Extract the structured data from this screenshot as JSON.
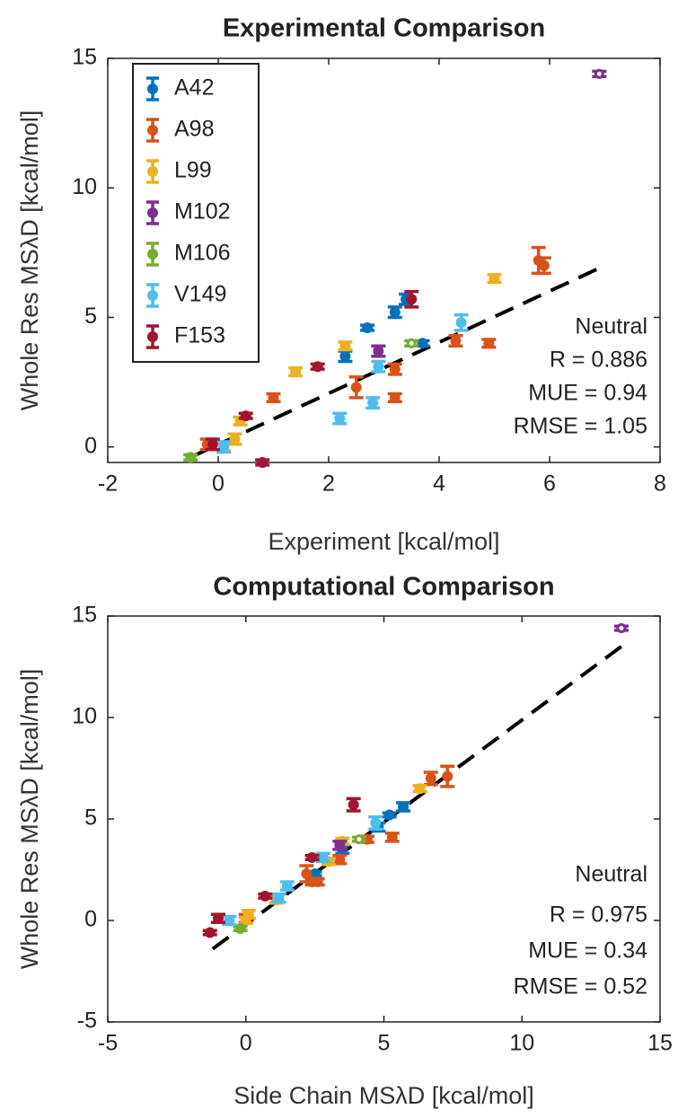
{
  "chart_data": [
    {
      "type": "scatter",
      "title": "Experimental Comparison",
      "x_label": "Experiment [kcal/mol]",
      "y_label": "Whole Res MSλD [kcal/mol]",
      "xlim": [
        -2,
        8
      ],
      "xticks": [
        -2,
        0,
        2,
        4,
        6,
        8
      ],
      "ylim": [
        -0.6,
        15
      ],
      "yticks": [
        0,
        5,
        10,
        15
      ],
      "legend": "upper left",
      "annotations": [
        "Neutral",
        "R = 0.886",
        "MUE = 0.94",
        "RMSE = 1.05"
      ],
      "fit_line": {
        "x": [
          -0.5,
          6.9
        ],
        "y": [
          -0.4,
          6.9
        ]
      },
      "series": [
        {
          "name": "A42",
          "color": "#0072BD",
          "x": [
            2.3,
            2.7,
            3.2,
            3.4,
            3.7
          ],
          "y": [
            3.5,
            4.6,
            5.2,
            5.7,
            4.0
          ],
          "errors": [
            0.2,
            0.1,
            0.2,
            0.2,
            0.1
          ]
        },
        {
          "name": "A98",
          "color": "#D95319",
          "x": [
            5.8,
            5.9,
            4.3,
            4.9,
            3.2,
            3.2,
            2.5,
            1.0,
            -0.2
          ],
          "y": [
            7.2,
            7.0,
            4.1,
            4.0,
            3.0,
            1.9,
            2.3,
            1.9,
            0.1
          ],
          "errors": [
            0.5,
            0.3,
            0.2,
            0.15,
            0.2,
            0.15,
            0.4,
            0.15,
            0.2
          ]
        },
        {
          "name": "L99",
          "color": "#EDB120",
          "x": [
            5.0,
            2.3,
            1.4,
            0.4,
            0.3,
            0.1
          ],
          "y": [
            6.5,
            3.9,
            2.9,
            1.0,
            0.3,
            0.0
          ],
          "errors": [
            0.15,
            0.15,
            0.15,
            0.15,
            0.2,
            0.15
          ]
        },
        {
          "name": "M102",
          "color": "#7E2F8E",
          "x": [
            6.9,
            2.9
          ],
          "y": [
            14.4,
            3.7
          ],
          "errors": [
            0.1,
            0.2
          ],
          "open_points": [
            0
          ]
        },
        {
          "name": "M106",
          "color": "#77AC30",
          "x": [
            3.5,
            -0.5
          ],
          "y": [
            4.0,
            -0.4
          ],
          "errors": [
            0.1,
            0.1
          ],
          "open_points": [
            0
          ]
        },
        {
          "name": "V149",
          "color": "#4DBEEE",
          "x": [
            4.4,
            2.2,
            2.8,
            2.9,
            0.1
          ],
          "y": [
            4.8,
            1.1,
            1.7,
            3.1,
            0.0
          ],
          "errors": [
            0.3,
            0.2,
            0.2,
            0.2,
            0.2
          ]
        },
        {
          "name": "F153",
          "color": "#A2142F",
          "x": [
            3.5,
            1.8,
            0.5,
            0.8,
            -0.1
          ],
          "y": [
            5.7,
            3.1,
            1.2,
            -0.6,
            0.1
          ],
          "errors": [
            0.3,
            0.1,
            0.1,
            0.1,
            0.2
          ]
        }
      ]
    },
    {
      "type": "scatter",
      "title": "Computational Comparison",
      "x_label": "Side Chain MSλD [kcal/mol]",
      "y_label": "Whole Res MSλD [kcal/mol]",
      "xlim": [
        -5,
        15
      ],
      "xticks": [
        -5,
        0,
        5,
        10,
        15
      ],
      "ylim": [
        -5,
        15
      ],
      "yticks": [
        -5,
        0,
        5,
        10,
        15
      ],
      "annotations": [
        "Neutral",
        "R = 0.975",
        "MUE = 0.34",
        "RMSE = 0.52"
      ],
      "fit_line": {
        "x": [
          -1.2,
          13.6
        ],
        "y": [
          -1.4,
          13.5
        ]
      },
      "series": [
        {
          "color": "#0072BD",
          "x": [
            5.7,
            5.2,
            4.8,
            3.5,
            2.5
          ],
          "y": [
            5.6,
            5.2,
            4.6,
            3.5,
            2.3
          ],
          "errors": [
            0.2,
            0.1,
            0.2,
            0.2,
            0.1
          ]
        },
        {
          "color": "#D95319",
          "x": [
            7.3,
            6.7,
            5.3,
            4.4,
            3.4,
            2.4,
            2.2,
            2.6,
            0.0
          ],
          "y": [
            7.1,
            7.0,
            4.1,
            4.0,
            3.0,
            1.9,
            2.3,
            1.9,
            0.1
          ],
          "errors": [
            0.5,
            0.3,
            0.2,
            0.15,
            0.2,
            0.15,
            0.4,
            0.15,
            0.2
          ]
        },
        {
          "color": "#EDB120",
          "x": [
            6.3,
            3.5,
            3.0,
            1.1,
            0.1,
            0.0
          ],
          "y": [
            6.5,
            3.9,
            2.9,
            1.0,
            0.3,
            0.0
          ],
          "errors": [
            0.15,
            0.15,
            0.15,
            0.15,
            0.2,
            0.15
          ]
        },
        {
          "color": "#7E2F8E",
          "x": [
            13.6,
            3.4
          ],
          "y": [
            14.4,
            3.7
          ],
          "errors": [
            0.1,
            0.2
          ],
          "open_points": [
            0
          ]
        },
        {
          "color": "#77AC30",
          "x": [
            4.1,
            -0.2
          ],
          "y": [
            4.0,
            -0.4
          ],
          "errors": [
            0.1,
            0.1
          ],
          "open_points": [
            0
          ]
        },
        {
          "color": "#4DBEEE",
          "x": [
            4.7,
            1.2,
            1.5,
            2.8,
            -0.6
          ],
          "y": [
            4.8,
            1.1,
            1.7,
            3.1,
            0.0
          ],
          "errors": [
            0.3,
            0.2,
            0.2,
            0.2,
            0.2
          ]
        },
        {
          "color": "#A2142F",
          "x": [
            3.9,
            2.4,
            0.7,
            -1.3,
            -1.0
          ],
          "y": [
            5.7,
            3.1,
            1.2,
            -0.6,
            0.1
          ],
          "errors": [
            0.3,
            0.1,
            0.1,
            0.1,
            0.2
          ]
        }
      ]
    }
  ]
}
